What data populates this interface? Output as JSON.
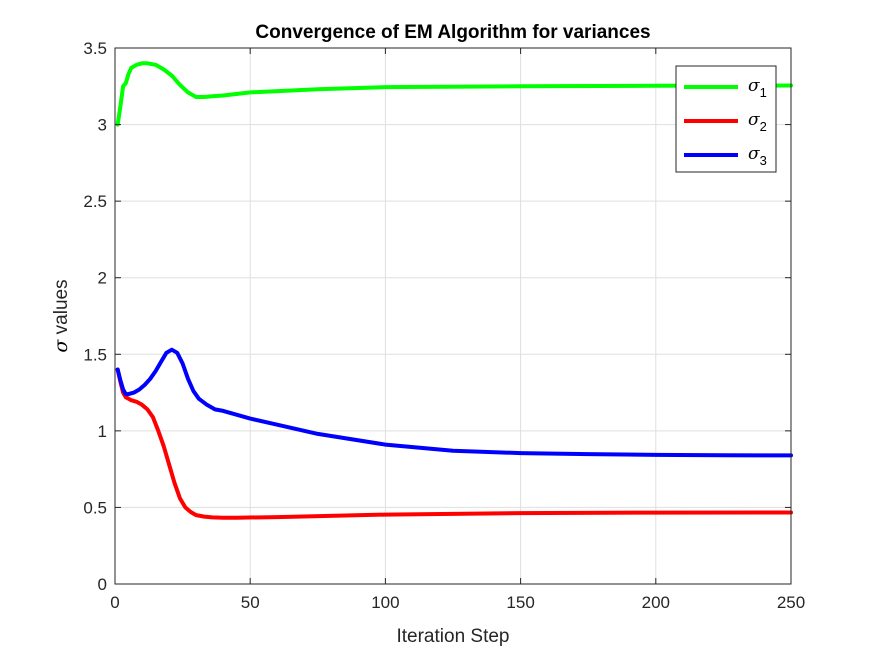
{
  "chart_data": {
    "type": "line",
    "title": "Convergence of EM Algorithm for variances",
    "xlabel": "Iteration Step",
    "ylabel_symbol": "σ",
    "ylabel_text": " values",
    "xlim": [
      0,
      250
    ],
    "ylim": [
      0,
      3.5
    ],
    "xticks": [
      0,
      50,
      100,
      150,
      200,
      250
    ],
    "yticks": [
      0,
      0.5,
      1,
      1.5,
      2,
      2.5,
      3,
      3.5
    ],
    "xtick_labels": [
      "0",
      "50",
      "100",
      "150",
      "200",
      "250"
    ],
    "ytick_labels": [
      "0",
      "0.5",
      "1",
      "1.5",
      "2",
      "2.5",
      "3",
      "3.5"
    ],
    "grid": true,
    "legend_position": "top-right",
    "series": [
      {
        "symbol": "σ",
        "subscript": "1",
        "color": "#00ff00",
        "x": [
          1,
          2,
          3,
          4,
          5,
          6,
          8,
          10,
          12,
          15,
          18,
          21,
          24,
          27,
          30,
          33,
          36,
          40,
          50,
          75,
          100,
          150,
          200,
          250
        ],
        "y": [
          3.0,
          3.12,
          3.25,
          3.27,
          3.33,
          3.37,
          3.39,
          3.4,
          3.4,
          3.39,
          3.36,
          3.32,
          3.26,
          3.21,
          3.18,
          3.18,
          3.185,
          3.19,
          3.21,
          3.23,
          3.245,
          3.25,
          3.253,
          3.255
        ]
      },
      {
        "symbol": "σ",
        "subscript": "2",
        "color": "#ff0000",
        "x": [
          1,
          2,
          3,
          4,
          6,
          8,
          10,
          12,
          14,
          16,
          18,
          20,
          22,
          24,
          26,
          28,
          30,
          33,
          36,
          40,
          45,
          60,
          100,
          150,
          200,
          250
        ],
        "y": [
          1.4,
          1.32,
          1.25,
          1.22,
          1.2,
          1.19,
          1.17,
          1.14,
          1.09,
          1.0,
          0.9,
          0.78,
          0.66,
          0.56,
          0.5,
          0.47,
          0.45,
          0.44,
          0.435,
          0.433,
          0.433,
          0.437,
          0.453,
          0.463,
          0.466,
          0.467
        ]
      },
      {
        "symbol": "σ",
        "subscript": "3",
        "color": "#0000ff",
        "x": [
          1,
          2,
          3,
          4,
          5,
          7,
          9,
          11,
          13,
          15,
          17,
          19,
          21,
          23,
          25,
          27,
          29,
          31,
          34,
          37,
          40,
          50,
          60,
          75,
          100,
          125,
          150,
          175,
          200,
          225,
          250
        ],
        "y": [
          1.4,
          1.33,
          1.27,
          1.24,
          1.24,
          1.25,
          1.27,
          1.3,
          1.34,
          1.39,
          1.45,
          1.51,
          1.53,
          1.51,
          1.44,
          1.34,
          1.26,
          1.21,
          1.17,
          1.14,
          1.13,
          1.08,
          1.04,
          0.98,
          0.91,
          0.87,
          0.855,
          0.848,
          0.843,
          0.841,
          0.84
        ]
      }
    ]
  }
}
